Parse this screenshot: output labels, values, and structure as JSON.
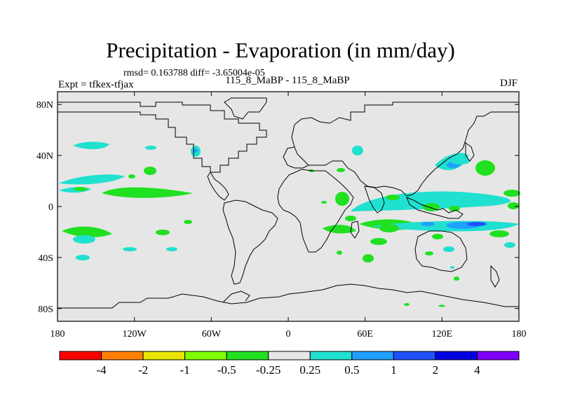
{
  "title": "Precipitation - Evaporation (in mm/day)",
  "stats_line": "rmsd= 0.163788 diff= -3.65004e-05",
  "expt_label": "Expt = tfkex-tfjax",
  "cases_label": "115_8_MaBP - 115_8_MaBP",
  "season": "DJF",
  "map": {
    "background": "#e6e6e6",
    "y_ticks": [
      {
        "label": "80N",
        "lat": 80
      },
      {
        "label": "40N",
        "lat": 40
      },
      {
        "label": "0",
        "lat": 0
      },
      {
        "label": "40S",
        "lat": -40
      },
      {
        "label": "80S",
        "lat": -80
      }
    ],
    "x_ticks": [
      {
        "label": "180",
        "lon": -180
      },
      {
        "label": "120W",
        "lon": -120
      },
      {
        "label": "60W",
        "lon": -60
      },
      {
        "label": "0",
        "lon": 0
      },
      {
        "label": "60E",
        "lon": 60
      },
      {
        "label": "120E",
        "lon": 120
      },
      {
        "label": "180",
        "lon": 180
      }
    ]
  },
  "colorbar": {
    "colors": [
      "#ff0000",
      "#ff8000",
      "#e6e600",
      "#80ff00",
      "#20e020",
      "#e6e6e6",
      "#20e0d0",
      "#20a0ff",
      "#2050ff",
      "#0000e0",
      "#8000ff"
    ],
    "labels": [
      "-4",
      "-2",
      "-1",
      "-0.5",
      "-0.25",
      "0.25",
      "0.5",
      "1",
      "2",
      "4"
    ]
  }
}
